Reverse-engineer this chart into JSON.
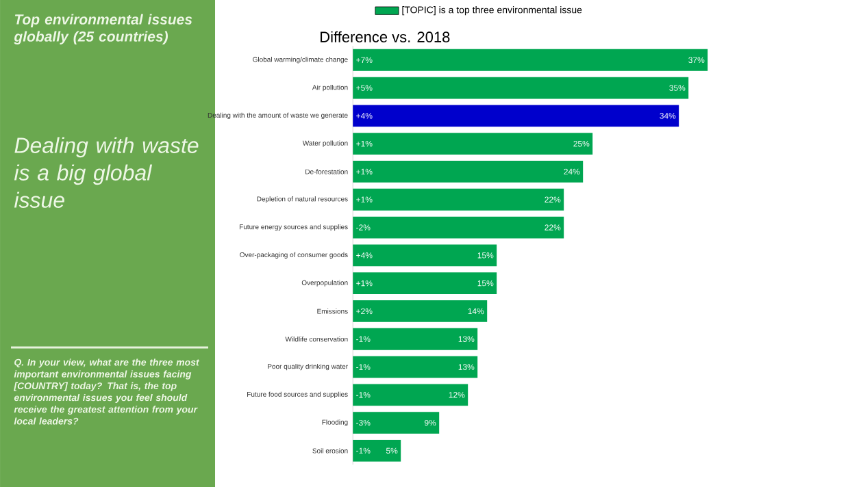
{
  "chart_data": {
    "type": "bar",
    "orientation": "horizontal",
    "title": "Top environmental issues globally (25 countries)",
    "subtitle": "Dealing with waste is a big global issue",
    "xlabel": "Difference vs. 2018",
    "categories": [
      "Global warming/climate change",
      "Air pollution",
      "Dealing with the amount of waste we generate",
      "Water pollution",
      "De-forestation",
      "Depletion of natural resources",
      "Future energy sources and supplies",
      "Over-packaging of consumer goods",
      "Overpopulation",
      "Emissions",
      "Wildlife conservation",
      "Poor quality drinking water",
      "Future food sources and supplies",
      "Flooding",
      "Soil erosion"
    ],
    "series": [
      {
        "name": "[TOPIC] is a top three environmental issue",
        "color": "#00a651",
        "colors": [
          "#00a651",
          "#00a651",
          "#0000cc",
          "#00a651",
          "#00a651",
          "#00a651",
          "#00a651",
          "#00a651",
          "#00a651",
          "#00a651",
          "#00a651",
          "#00a651",
          "#00a651",
          "#00a651",
          "#00a651"
        ],
        "values": [
          37,
          35,
          34,
          25,
          24,
          22,
          22,
          15,
          15,
          14,
          13,
          13,
          12,
          9,
          5
        ],
        "value_labels": [
          "37%",
          "35%",
          "34%",
          "25%",
          "24%",
          "22%",
          "22%",
          "15%",
          "15%",
          "14%",
          "13%",
          "13%",
          "12%",
          "9%",
          "5%"
        ]
      }
    ],
    "xlim": [
      0,
      37
    ],
    "tick_labels": "y",
    "legend": "top",
    "annotations": [
      "Q. In your view, what are the three most important environmental issues facing [COUNTRY] today? That is, the top environmental issues you feel should receive the greatest attention from your local leaders?",
      {
        "text": "+7%",
        "y": "Global warming/climate change"
      },
      {
        "text": "+5%",
        "y": "Air pollution"
      },
      {
        "text": "+4%",
        "y": "Dealing with the amount of waste we generate"
      },
      {
        "text": "+1%",
        "y": "Water pollution"
      },
      {
        "text": "+1%",
        "y": "De-forestation"
      },
      {
        "text": "+1%",
        "y": "Depletion of natural resources"
      },
      {
        "text": "-2%",
        "y": "Future energy sources and supplies"
      },
      {
        "text": "+4%",
        "y": "Over-packaging of consumer goods"
      },
      {
        "text": "+1%",
        "y": "Overpopulation"
      },
      {
        "text": "+2%",
        "y": "Emissions"
      },
      {
        "text": "-1%",
        "y": "Wildlife conservation"
      },
      {
        "text": "-1%",
        "y": "Poor quality drinking water"
      },
      {
        "text": "-1%",
        "y": "Future food sources and supplies"
      },
      {
        "text": "-3%",
        "y": "Flooding"
      },
      {
        "text": "-1%",
        "y": "Soil erosion"
      }
    ]
  }
}
